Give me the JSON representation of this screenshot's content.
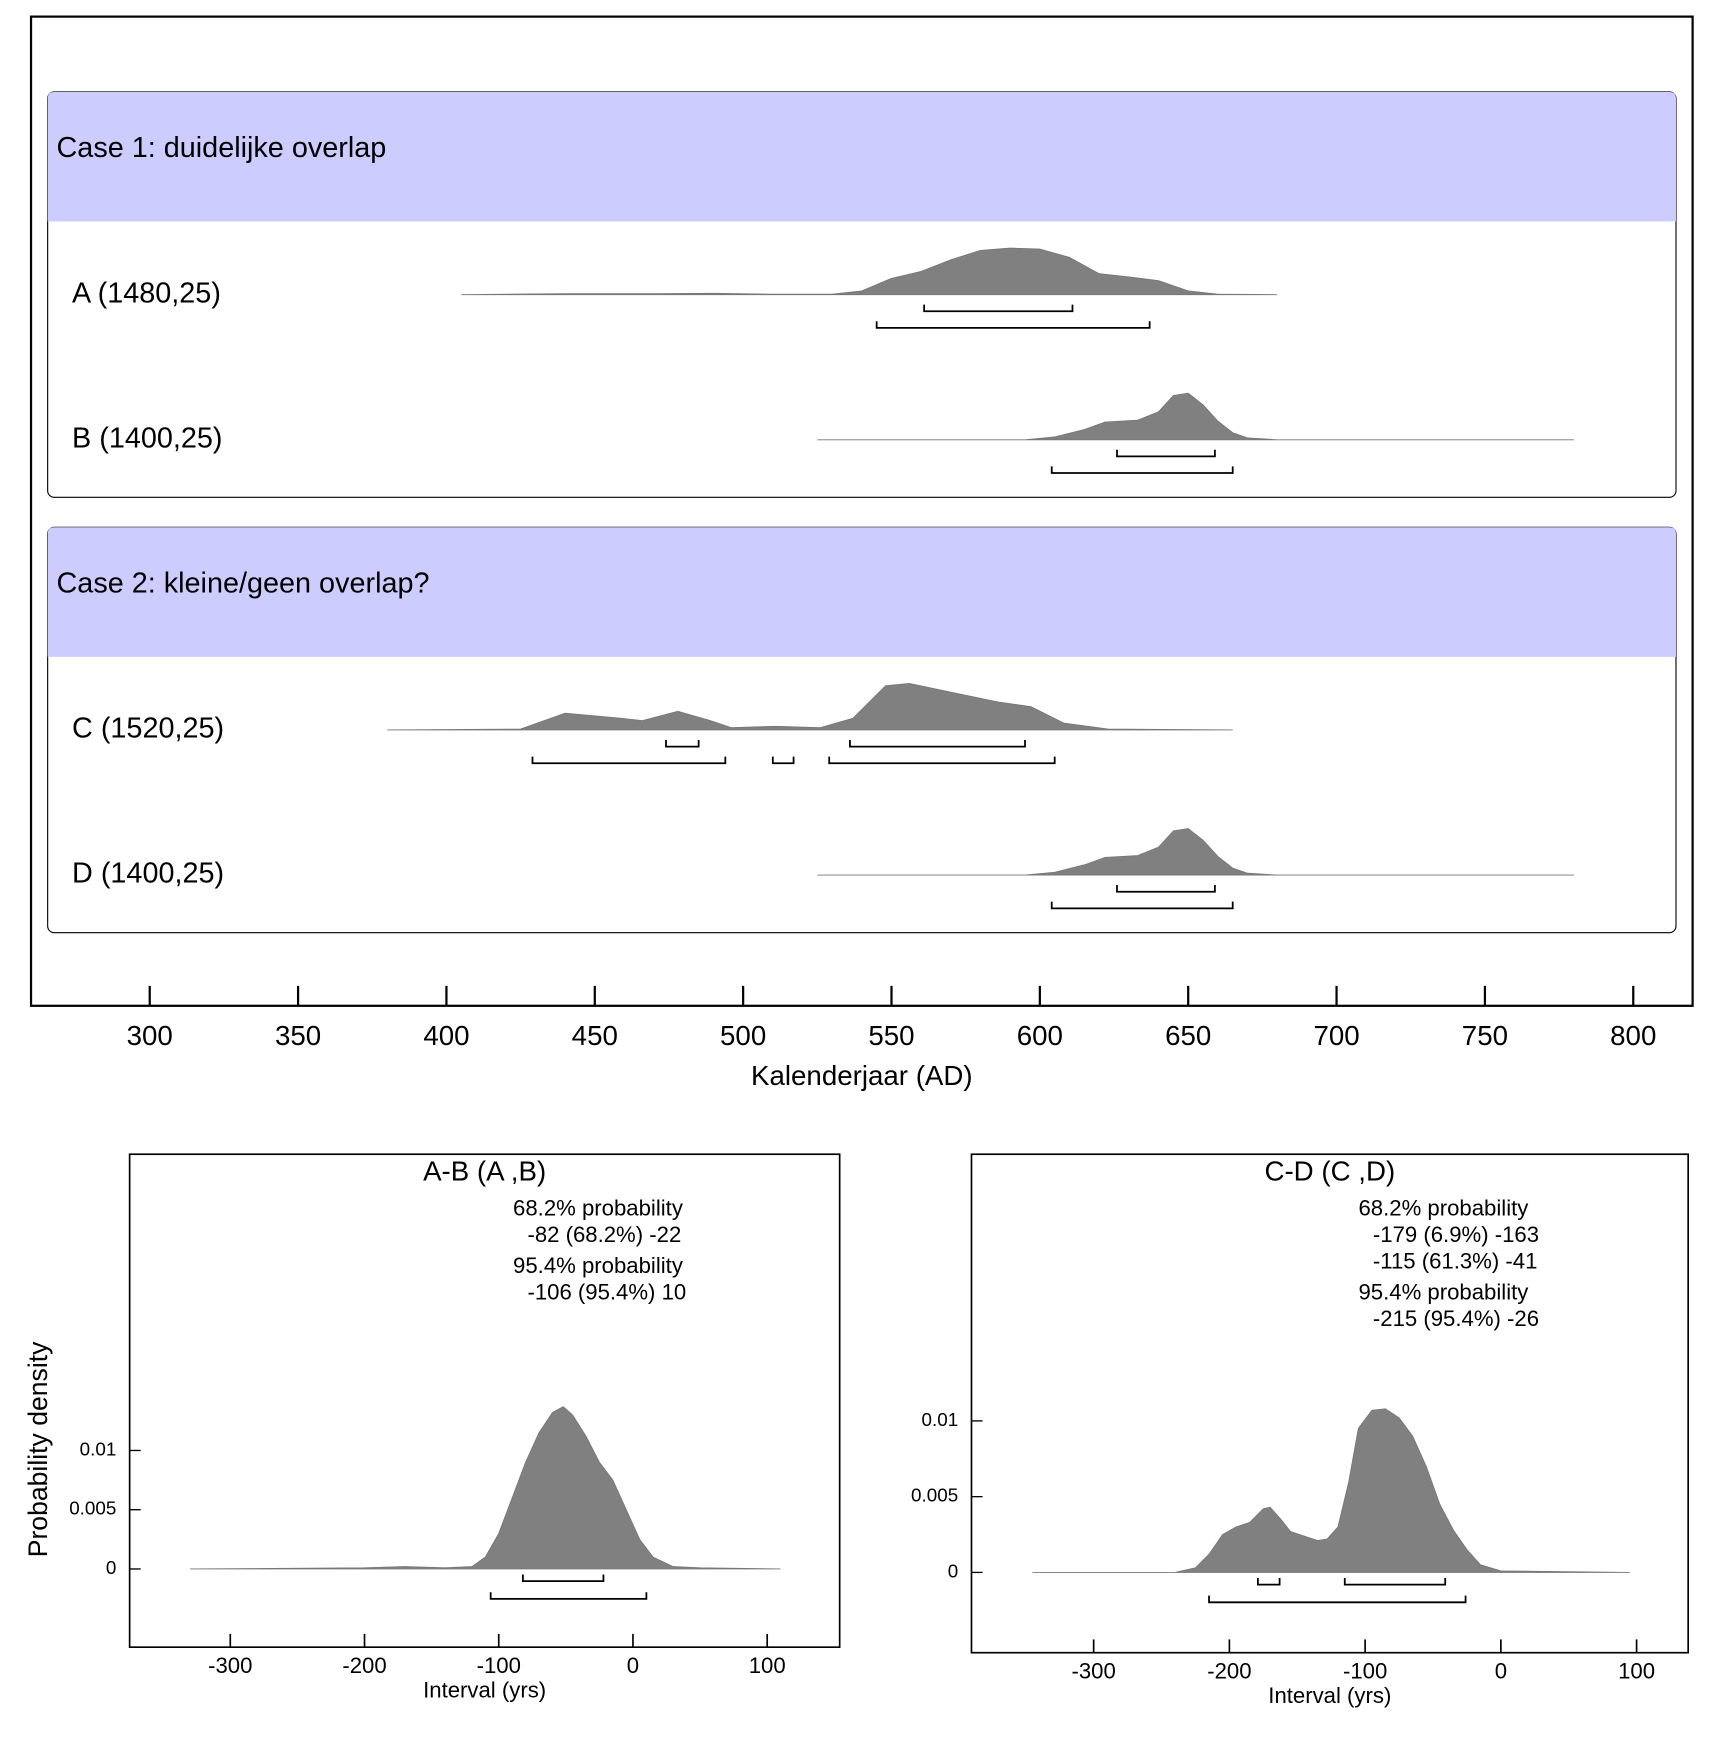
{
  "chart_data": [
    {
      "type": "multiplot",
      "xlabel": "Kalenderjaar (AD)",
      "xlim": [
        260,
        820
      ],
      "xticks": [
        300,
        350,
        400,
        450,
        500,
        550,
        600,
        650,
        700,
        750,
        800
      ],
      "color": "#808080",
      "header_color": "#ccccff",
      "groups": [
        {
          "title": "Case 1: duidelijke overlap",
          "items": [
            {
              "label": "A (1480,25)",
              "x": [
                405,
                440,
                470,
                490,
                510,
                530,
                540,
                550,
                560,
                570,
                580,
                590,
                600,
                610,
                620,
                630,
                640,
                650,
                660,
                680
              ],
              "values": [
                0,
                0.02,
                0.02,
                0.03,
                0.01,
                0.01,
                0.08,
                0.35,
                0.5,
                0.75,
                0.95,
                1,
                0.98,
                0.8,
                0.45,
                0.38,
                0.3,
                0.08,
                0.01,
                0
              ],
              "ranges68": [
                [
                  561,
                  611
                ]
              ],
              "ranges95": [
                [
                  545,
                  637
                ]
              ]
            },
            {
              "label": "B (1400,25)",
              "x": [
                525,
                595,
                605,
                615,
                622,
                633,
                640,
                645,
                650,
                655,
                660,
                665,
                670,
                680,
                780
              ],
              "values": [
                0,
                0,
                0.06,
                0.22,
                0.38,
                0.42,
                0.6,
                0.95,
                1,
                0.75,
                0.4,
                0.15,
                0.04,
                0,
                0
              ],
              "ranges68": [
                [
                  626,
                  659
                ]
              ],
              "ranges95": [
                [
                  604,
                  665
                ]
              ]
            }
          ]
        },
        {
          "title": "Case 2: kleine/geen overlap?",
          "items": [
            {
              "label": "C (1520,25)",
              "x": [
                380,
                425,
                440,
                459,
                466,
                478,
                489,
                496,
                511,
                526,
                537,
                548,
                556,
                571,
                586,
                597,
                608,
                623,
                665
              ],
              "values": [
                0,
                0.02,
                0.36,
                0.25,
                0.2,
                0.4,
                0.2,
                0.05,
                0.08,
                0.05,
                0.25,
                0.95,
                1,
                0.8,
                0.6,
                0.5,
                0.15,
                0.02,
                0
              ],
              "ranges68": [
                [
                  474,
                  485
                ],
                [
                  536,
                  595
                ]
              ],
              "ranges95": [
                [
                  429,
                  494
                ],
                [
                  510,
                  517
                ],
                [
                  529,
                  605
                ]
              ]
            },
            {
              "label": "D (1400,25)",
              "x": [
                525,
                595,
                605,
                615,
                622,
                633,
                640,
                645,
                650,
                655,
                660,
                665,
                670,
                680,
                780
              ],
              "values": [
                0,
                0,
                0.06,
                0.22,
                0.38,
                0.42,
                0.6,
                0.95,
                1,
                0.75,
                0.4,
                0.15,
                0.04,
                0,
                0
              ],
              "ranges68": [
                [
                  626,
                  659
                ]
              ],
              "ranges95": [
                [
                  604,
                  665
                ]
              ]
            }
          ]
        }
      ]
    },
    {
      "type": "area",
      "title": "A-B (A ,B)",
      "xlabel": "Interval (yrs)",
      "ylabel": "Probability density",
      "annotations": [
        {
          "heading": "68.2% probability",
          "lines": [
            "-82 (68.2%) -22"
          ]
        },
        {
          "heading": "95.4% probability",
          "lines": [
            "-106 (95.4%) 10"
          ]
        }
      ],
      "xlim": [
        -375,
        154
      ],
      "ylim": [
        -0.0066,
        0.035
      ],
      "xticks": [
        -300,
        -200,
        -100,
        0,
        100
      ],
      "yticks": [
        0,
        0.005,
        0.01
      ],
      "color": "#808080",
      "x": [
        -330,
        -200,
        -170,
        -140,
        -120,
        -110,
        -100,
        -90,
        -80,
        -70,
        -60,
        -52,
        -45,
        -35,
        -25,
        -15,
        -5,
        5,
        15,
        30,
        50,
        110
      ],
      "values": [
        0,
        0.0001,
        0.0002,
        0.0001,
        0.0002,
        0.001,
        0.003,
        0.006,
        0.009,
        0.0115,
        0.0132,
        0.0137,
        0.013,
        0.0112,
        0.009,
        0.0075,
        0.005,
        0.0025,
        0.001,
        0.0002,
        0.0001,
        0
      ],
      "ranges68": [
        [
          -82,
          -22
        ]
      ],
      "ranges95": [
        [
          -106,
          10
        ]
      ]
    },
    {
      "type": "area",
      "title": "C-D (C ,D)",
      "xlabel": "Interval (yrs)",
      "annotations": [
        {
          "heading": "68.2% probability",
          "lines": [
            "-179 (6.9%) -163",
            "-115 (61.3%) -41"
          ]
        },
        {
          "heading": "95.4% probability",
          "lines": [
            "-215 (95.4%) -26"
          ]
        }
      ],
      "xlim": [
        -390,
        138
      ],
      "ylim": [
        -0.0053,
        0.0276
      ],
      "xticks": [
        -300,
        -200,
        -100,
        0,
        100
      ],
      "yticks": [
        0,
        0.005,
        0.01
      ],
      "color": "#808080",
      "x": [
        -345,
        -240,
        -225,
        -215,
        -205,
        -195,
        -185,
        -175,
        -170,
        -162,
        -155,
        -145,
        -135,
        -128,
        -120,
        -112,
        -105,
        -95,
        -85,
        -75,
        -65,
        -55,
        -45,
        -35,
        -25,
        -15,
        0,
        95
      ],
      "values": [
        0,
        0,
        0.0003,
        0.0012,
        0.0025,
        0.003,
        0.0033,
        0.0042,
        0.0043,
        0.0035,
        0.0027,
        0.0024,
        0.0021,
        0.0022,
        0.003,
        0.006,
        0.0095,
        0.0107,
        0.0108,
        0.0102,
        0.009,
        0.007,
        0.0045,
        0.0028,
        0.0015,
        0.0005,
        0.0001,
        0
      ],
      "ranges68": [
        [
          -179,
          -163
        ],
        [
          -115,
          -41
        ]
      ],
      "ranges95": [
        [
          -215,
          -26
        ]
      ]
    }
  ]
}
